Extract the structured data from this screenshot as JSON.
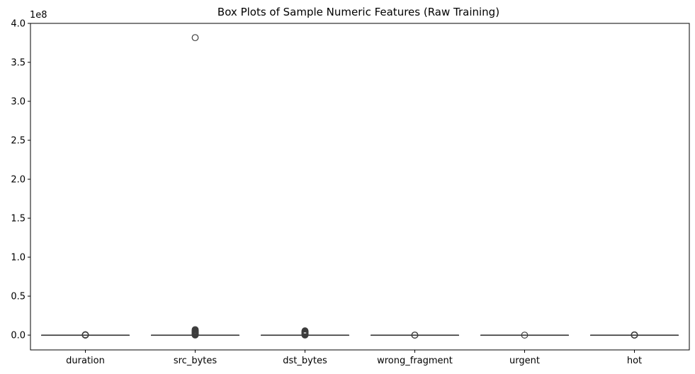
{
  "chart_data": {
    "type": "box",
    "title": "Box Plots of Sample Numeric Features (Raw Training)",
    "xlabel": "",
    "ylabel": "",
    "y_scale_note": "1e8",
    "ylim": [
      -19000000.0,
      400000000.0
    ],
    "yticks": [
      0,
      50000000.0,
      100000000.0,
      150000000.0,
      200000000.0,
      250000000.0,
      300000000.0,
      350000000.0,
      400000000.0
    ],
    "ytick_labels": [
      "0.0",
      "0.5",
      "1.0",
      "1.5",
      "2.0",
      "2.5",
      "3.0",
      "3.5",
      "4.0"
    ],
    "grid": false,
    "categories": [
      "duration",
      "src_bytes",
      "dst_bytes",
      "wrong_fragment",
      "urgent",
      "hot"
    ],
    "series": [
      {
        "whisker_low": 0,
        "q1": 0,
        "median": 0,
        "q3": 0,
        "whisker_high": 0,
        "outliers": [
          0,
          100000,
          200000,
          300000,
          400000,
          500000
        ]
      },
      {
        "whisker_low": 0,
        "q1": 0,
        "median": 0,
        "q3": 0,
        "whisker_high": 0,
        "outliers": [
          381700000,
          100000,
          400000,
          800000,
          1200000,
          1600000,
          2000000,
          2500000,
          3000000,
          3500000,
          4000000,
          4500000,
          5000000,
          5500000,
          6000000,
          7000000
        ]
      },
      {
        "whisker_low": 0,
        "q1": 0,
        "median": 0,
        "q3": 0,
        "whisker_high": 0,
        "outliers": [
          100000,
          400000,
          800000,
          1200000,
          1600000,
          2000000,
          2500000,
          3000000,
          3500000,
          4000000,
          4500000,
          5000000,
          5500000
        ]
      },
      {
        "whisker_low": 0,
        "q1": 0,
        "median": 0,
        "q3": 0,
        "whisker_high": 0,
        "outliers": [
          0,
          0,
          0
        ]
      },
      {
        "whisker_low": 0,
        "q1": 0,
        "median": 0,
        "q3": 0,
        "whisker_high": 0,
        "outliers": [
          0
        ]
      },
      {
        "whisker_low": 0,
        "q1": 0,
        "median": 0,
        "q3": 0,
        "whisker_high": 0,
        "outliers": [
          0,
          50000,
          100000,
          150000,
          200000,
          300000
        ]
      }
    ]
  }
}
